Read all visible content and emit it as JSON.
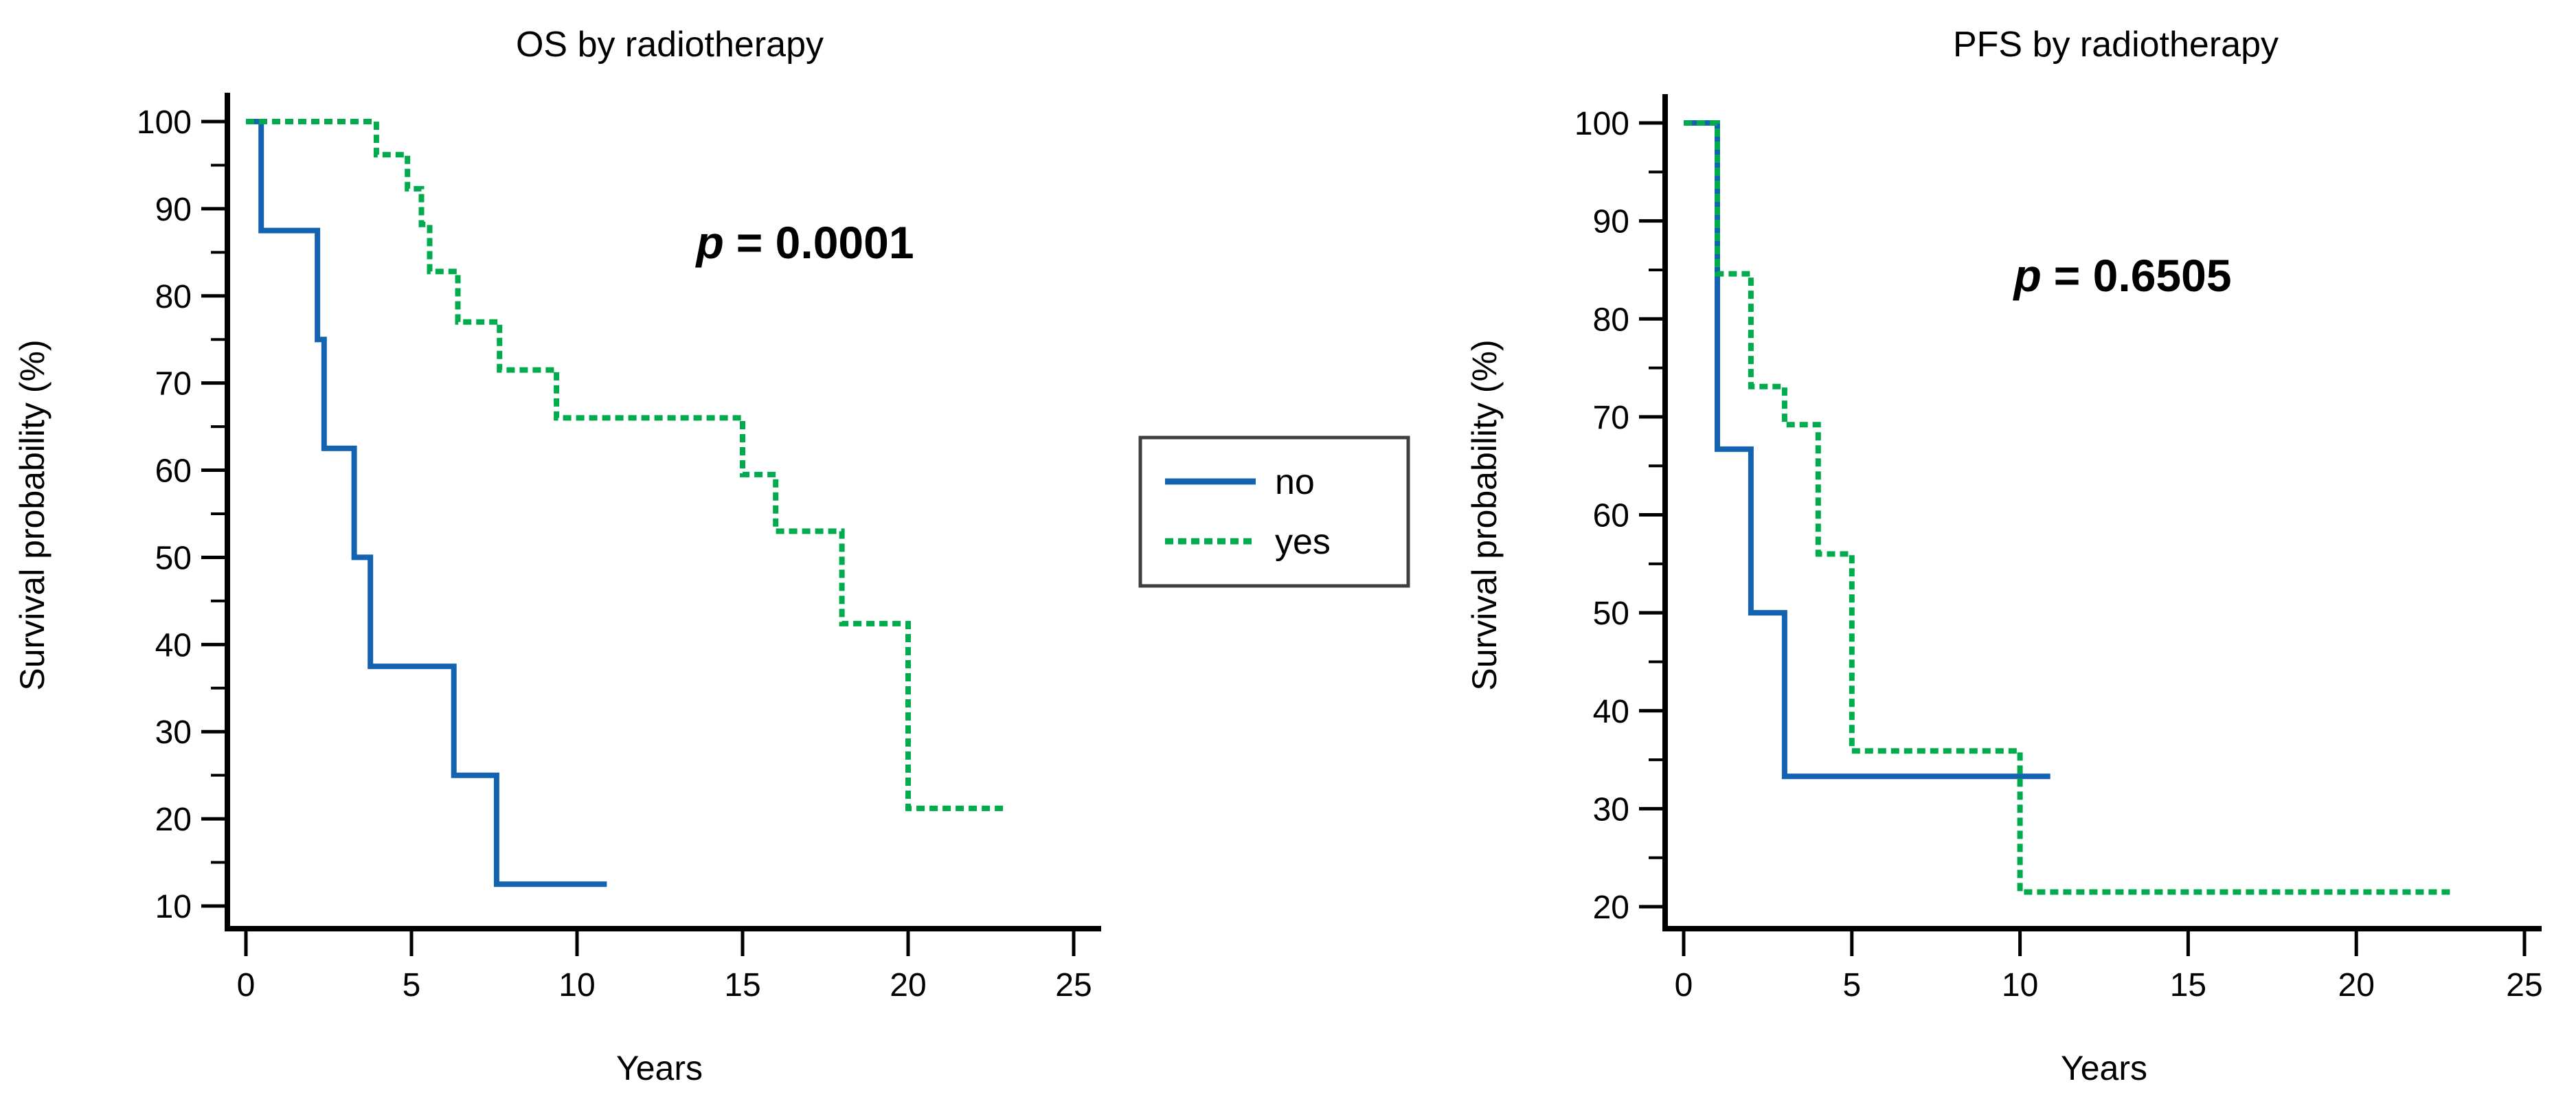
{
  "page": {
    "background": "#ffffff"
  },
  "legend": {
    "position": "center-between-charts",
    "items": [
      {
        "label": "no",
        "color": "#1463b0",
        "line_style": "solid"
      },
      {
        "label": "yes",
        "color": "#00ab4e",
        "line_style": "dashed"
      }
    ]
  },
  "chart_data": [
    {
      "type": "line",
      "subtype": "kaplan-meier-step",
      "title": "OS by radiotherapy",
      "xlabel": "Years",
      "ylabel": "Survival probability (%)",
      "p_value_label": "p",
      "p_value_text": "= 0.0001",
      "xlim": [
        0,
        25
      ],
      "ylim": [
        10,
        100
      ],
      "x_ticks": [
        0,
        5,
        10,
        15,
        20,
        25
      ],
      "y_ticks": [
        10,
        20,
        30,
        40,
        50,
        60,
        70,
        80,
        90,
        100
      ],
      "y_minor_tick_step": 5,
      "grid": false,
      "series": [
        {
          "name": "no",
          "color": "#1463b0",
          "dash": "solid",
          "points": [
            [
              0,
              100
            ],
            [
              0.46,
              100
            ],
            [
              0.46,
              87.5
            ],
            [
              2.16,
              87.5
            ],
            [
              2.16,
              75
            ],
            [
              2.36,
              75
            ],
            [
              2.36,
              62.5
            ],
            [
              3.27,
              62.5
            ],
            [
              3.27,
              50
            ],
            [
              3.76,
              50
            ],
            [
              3.76,
              37.5
            ],
            [
              6.28,
              37.5
            ],
            [
              6.28,
              25
            ],
            [
              7.57,
              25
            ],
            [
              7.57,
              12.5
            ],
            [
              10.9,
              12.5
            ]
          ]
        },
        {
          "name": "yes",
          "color": "#00ab4e",
          "dash": "dashed",
          "points": [
            [
              0,
              100
            ],
            [
              3.94,
              100
            ],
            [
              3.94,
              96.2
            ],
            [
              4.88,
              96.2
            ],
            [
              4.88,
              92.3
            ],
            [
              5.3,
              92.3
            ],
            [
              5.3,
              88.2
            ],
            [
              5.55,
              88.2
            ],
            [
              5.55,
              82.8
            ],
            [
              6.4,
              82.8
            ],
            [
              6.4,
              77
            ],
            [
              7.66,
              77
            ],
            [
              7.66,
              71.5
            ],
            [
              9.38,
              71.5
            ],
            [
              9.38,
              66
            ],
            [
              15,
              66
            ],
            [
              15,
              59.5
            ],
            [
              16,
              59.5
            ],
            [
              16,
              53
            ],
            [
              18,
              53
            ],
            [
              18,
              42.4
            ],
            [
              20,
              42.4
            ],
            [
              20,
              21.2
            ],
            [
              22.9,
              21.2
            ]
          ]
        }
      ]
    },
    {
      "type": "line",
      "subtype": "kaplan-meier-step",
      "title": "PFS by radiotherapy",
      "xlabel": "Years",
      "ylabel": "Survival probability (%)",
      "p_value_label": "p",
      "p_value_text": "= 0.6505",
      "xlim": [
        0,
        25
      ],
      "ylim": [
        20,
        100
      ],
      "x_ticks": [
        0,
        5,
        10,
        15,
        20,
        25
      ],
      "y_ticks": [
        20,
        30,
        40,
        50,
        60,
        70,
        80,
        90,
        100
      ],
      "y_minor_tick_step": 5,
      "grid": false,
      "series": [
        {
          "name": "no",
          "color": "#1463b0",
          "dash": "solid",
          "points": [
            [
              0,
              100
            ],
            [
              1,
              100
            ],
            [
              1,
              66.7
            ],
            [
              2,
              66.7
            ],
            [
              2,
              50
            ],
            [
              3,
              50
            ],
            [
              3,
              33.3
            ],
            [
              10.9,
              33.3
            ]
          ]
        },
        {
          "name": "yes",
          "color": "#00ab4e",
          "dash": "dashed",
          "points": [
            [
              0,
              100
            ],
            [
              1,
              100
            ],
            [
              1,
              84.6
            ],
            [
              2,
              84.6
            ],
            [
              2,
              73.1
            ],
            [
              3,
              73.1
            ],
            [
              3,
              69.2
            ],
            [
              4,
              69.2
            ],
            [
              4,
              56
            ],
            [
              5,
              56
            ],
            [
              5,
              35.9
            ],
            [
              10,
              35.9
            ],
            [
              10,
              21.5
            ],
            [
              22.9,
              21.5
            ]
          ]
        }
      ]
    }
  ]
}
